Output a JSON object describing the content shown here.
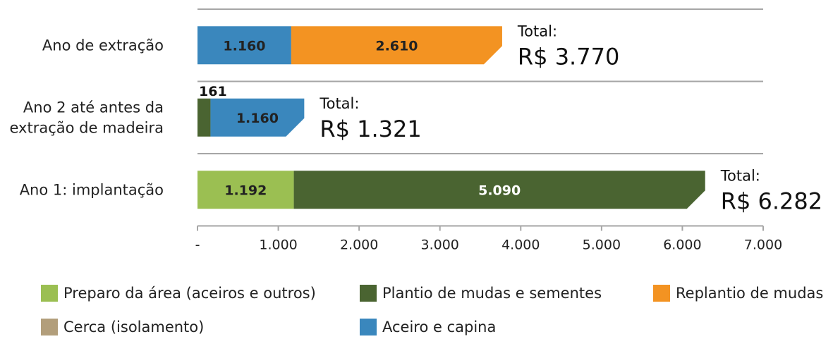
{
  "chart_data": {
    "type": "bar",
    "orientation": "horizontal",
    "stacked": true,
    "categories": [
      "Ano de extração",
      "Ano 2 até antes da extração de madeira",
      "Ano 1: implantação"
    ],
    "category_lines": [
      [
        "Ano de extração"
      ],
      [
        "Ano 2 até antes da",
        "extração de madeira"
      ],
      [
        "Ano 1: implantação"
      ]
    ],
    "series": [
      {
        "name": "Preparo da área (aceiros e outros)",
        "color": "#9bbf52",
        "values": [
          0,
          0,
          1192
        ],
        "labels": [
          "",
          "",
          "1.192"
        ],
        "label_color": "#222222"
      },
      {
        "name": "Plantio de mudas e sementes",
        "color": "#4a6431",
        "values": [
          0,
          161,
          5090
        ],
        "labels": [
          "",
          "161",
          "5.090"
        ],
        "label_color": "#ffffff"
      },
      {
        "name": "Replantio de mudas",
        "color": "#f39322",
        "values": [
          2610,
          0,
          0
        ],
        "labels": [
          "2.610",
          "",
          ""
        ],
        "label_color": "#222222"
      },
      {
        "name": "Cerca (isolamento)",
        "color": "#b29e7b",
        "values": [
          0,
          0,
          0
        ],
        "labels": [
          "",
          "",
          ""
        ],
        "label_color": "#222222"
      },
      {
        "name": "Aceiro e capina",
        "color": "#3a87bd",
        "values": [
          1160,
          1160,
          0
        ],
        "labels": [
          "1.160",
          "1.160",
          ""
        ],
        "label_color": "#222222"
      }
    ],
    "stack_order": [
      0,
      1,
      4,
      2,
      3
    ],
    "totals": [
      {
        "label": "Total:",
        "value": "R$ 3.770"
      },
      {
        "label": "Total:",
        "value": "R$ 1.321"
      },
      {
        "label": "Total:",
        "value": "R$ 6.282"
      }
    ],
    "xlim": [
      0,
      7000
    ],
    "x_ticks": [
      0,
      1000,
      2000,
      3000,
      4000,
      5000,
      6000,
      7000
    ],
    "x_tick_labels": [
      "-",
      "1.000",
      "2.000",
      "3.000",
      "4.000",
      "5.000",
      "6.000",
      "7.000"
    ],
    "grid": "horizontal separators",
    "legend_position": "bottom"
  }
}
